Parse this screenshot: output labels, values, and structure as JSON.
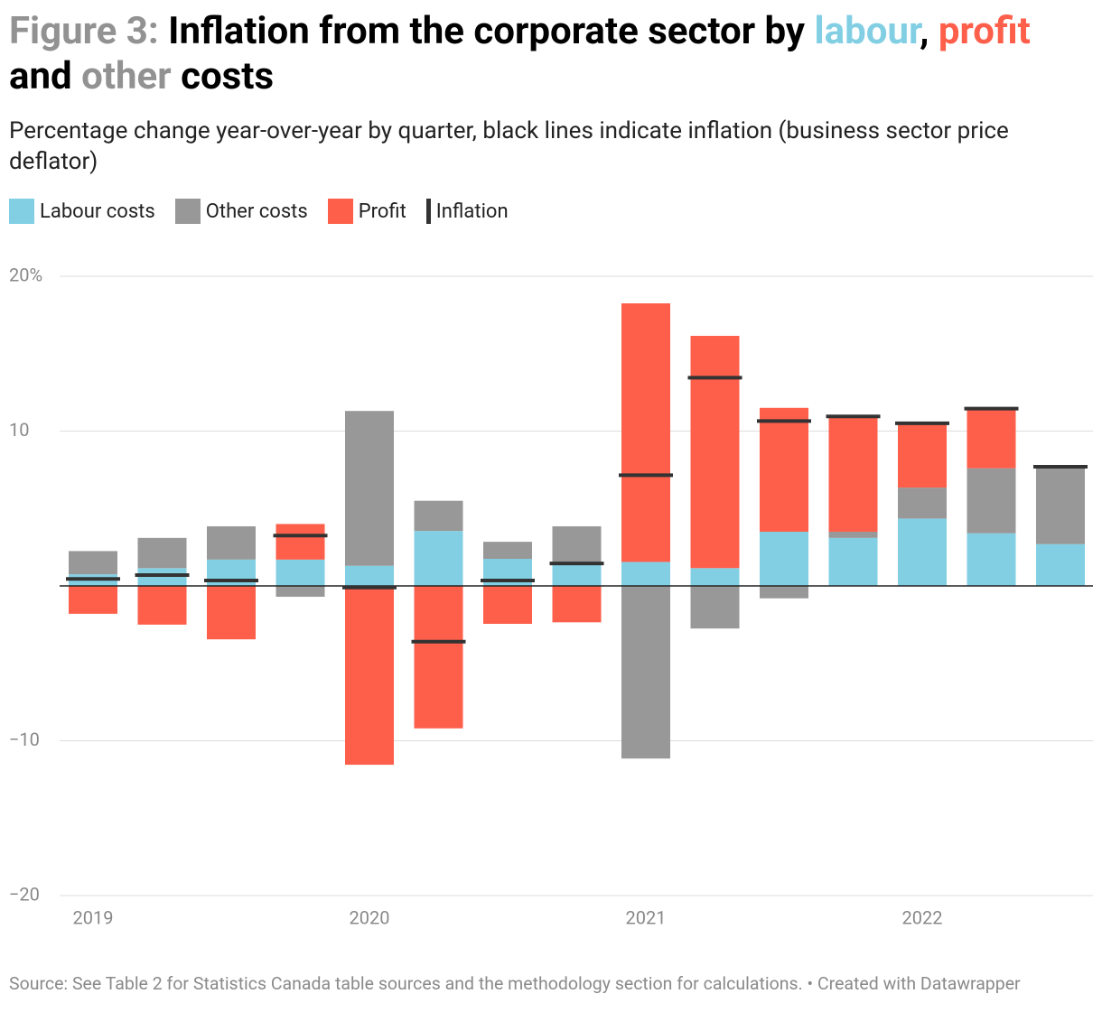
{
  "chart_data": {
    "type": "bar",
    "title_lines": [
      [
        {
          "text": "Figure 3: ",
          "color": "#929292"
        },
        {
          "text": "Inflation from the corporate sector by ",
          "color": "#000000"
        },
        {
          "text": "labour",
          "color": "#82cfe4"
        },
        {
          "text": ", ",
          "color": "#000000"
        },
        {
          "text": "profit",
          "color": "#fe5f4b"
        }
      ],
      [
        {
          "text": "and ",
          "color": "#000000"
        },
        {
          "text": "other",
          "color": "#929292"
        },
        {
          "text": " costs",
          "color": "#000000"
        }
      ]
    ],
    "subtitle": "Percentage change year-over-year by quarter, black lines indicate inflation (business sector price deflator)",
    "source": "Source: See Table 2 for Statistics Canada table sources and the methodology section for calculations. • Created with Datawrapper",
    "categories": [
      "2019",
      null,
      null,
      null,
      "2020",
      null,
      null,
      null,
      "2021",
      null,
      null,
      null,
      "2022",
      null,
      null
    ],
    "series": [
      {
        "name": "Labour costs",
        "color": "#82cfe4",
        "style": "stacked",
        "values": [
          0.75,
          1.15,
          1.7,
          1.7,
          1.3,
          3.55,
          1.75,
          1.35,
          1.55,
          1.15,
          3.5,
          3.1,
          4.35,
          3.4,
          2.7
        ]
      },
      {
        "name": "Other costs",
        "color": "#989898",
        "style": "stacked",
        "values": [
          1.5,
          1.95,
          2.15,
          -0.7,
          10.0,
          1.95,
          1.1,
          2.5,
          -11.15,
          -2.75,
          -0.8,
          0.4,
          2.0,
          4.2,
          5.0
        ]
      },
      {
        "name": "Profit",
        "color": "#fe5f4b",
        "style": "stacked",
        "values": [
          -1.8,
          -2.5,
          -3.45,
          2.3,
          -11.55,
          -9.2,
          -2.45,
          -2.35,
          16.7,
          15.0,
          8.0,
          7.45,
          4.15,
          3.85,
          0
        ]
      },
      {
        "name": "Inflation",
        "color": "#333333",
        "style": "tick",
        "values": [
          0.45,
          0.7,
          0.35,
          3.25,
          -0.1,
          -3.6,
          0.35,
          1.45,
          7.15,
          13.45,
          10.65,
          10.95,
          10.5,
          11.45,
          7.7
        ]
      }
    ],
    "ylim": [
      -20,
      20
    ],
    "yticks": [
      {
        "value": 20,
        "label": "20%"
      },
      10,
      {
        "value": -10,
        "label": "−10"
      },
      {
        "value": -20,
        "label": "−20"
      }
    ],
    "grid": true
  }
}
